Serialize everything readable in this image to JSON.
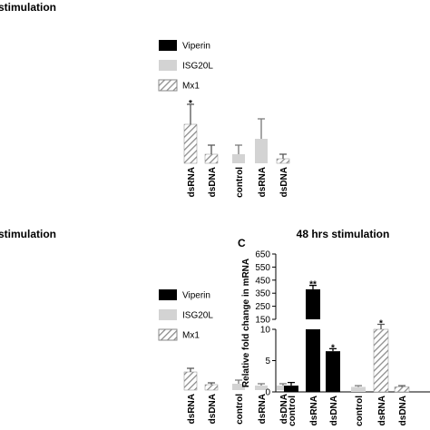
{
  "chart_data": [
    {
      "type": "bar",
      "title": "stimulation",
      "categories": [
        "dsRNA",
        "dsDNA",
        "control",
        "dsRNA",
        "dsDNA"
      ],
      "series": [
        {
          "name": "Viperin",
          "color": "#000000",
          "values": [
            null,
            null,
            null,
            null,
            null
          ],
          "errors": [
            null,
            null,
            null,
            null,
            null
          ]
        },
        {
          "name": "ISG20L",
          "color": "#d3d3d3",
          "values": [
            null,
            null,
            1.0,
            2.7,
            null
          ],
          "errors": [
            null,
            null,
            1.0,
            2.2,
            null
          ]
        },
        {
          "name": "Mx1",
          "color": "#8a8a8a",
          "hatch": true,
          "values": [
            4.3,
            1.0,
            null,
            null,
            0.5
          ],
          "errors": [
            2.2,
            1.0,
            null,
            null,
            0.5
          ]
        }
      ],
      "annotations": [
        "*"
      ],
      "ylim": [
        0,
        6
      ]
    },
    {
      "type": "bar",
      "title": "stimulation",
      "categories": [
        "dsRNA",
        "dsDNA",
        "control",
        "dsRNA",
        "dsDNA"
      ],
      "series": [
        {
          "name": "Viperin",
          "color": "#000000",
          "values": [
            null,
            null,
            null,
            null,
            null
          ],
          "errors": [
            null,
            null,
            null,
            null,
            null
          ]
        },
        {
          "name": "ISG20L",
          "color": "#d3d3d3",
          "values": [
            null,
            null,
            0.7,
            0.5,
            0.5
          ],
          "errors": [
            null,
            null,
            0.4,
            0.2,
            0.2
          ]
        },
        {
          "name": "Mx1",
          "color": "#8a8a8a",
          "hatch": true,
          "values": [
            2.0,
            0.6,
            null,
            null,
            null
          ],
          "errors": [
            0.4,
            0.2,
            null,
            null,
            null
          ]
        }
      ],
      "ylim": [
        0,
        6
      ]
    },
    {
      "type": "bar",
      "panel": "C",
      "title": "48 hrs stimulation",
      "ylabel": "Relative fold change in mRNA",
      "categories": [
        "control",
        "dsRNA",
        "dsDNA",
        "control",
        "dsRNA",
        "dsDNA"
      ],
      "series": [
        {
          "name": "Viperin",
          "color": "#000000",
          "values": [
            1,
            380,
            6.5,
            null,
            null,
            null
          ],
          "errors": [
            0.5,
            30,
            0.4,
            null,
            null,
            null
          ]
        },
        {
          "name": "ISG20L",
          "color": "#d3d3d3",
          "values": [
            null,
            null,
            null,
            0.8,
            null,
            null
          ],
          "errors": [
            null,
            null,
            null,
            0.2,
            null,
            null
          ]
        },
        {
          "name": "Mx1",
          "color": "#8a8a8a",
          "hatch": true,
          "values": [
            null,
            null,
            null,
            null,
            10,
            0.8
          ],
          "errors": [
            null,
            null,
            null,
            null,
            0.2,
            0.2
          ]
        }
      ],
      "annotations": [
        "**",
        "*",
        "*"
      ],
      "ylim": [
        0,
        650
      ],
      "axis_break": [
        10,
        150
      ],
      "yticks": [
        0,
        5,
        10,
        150,
        250,
        350,
        450,
        550,
        650
      ]
    }
  ]
}
